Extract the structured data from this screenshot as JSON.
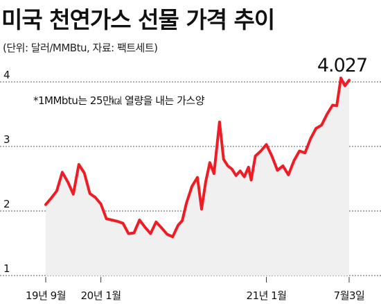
{
  "title": "미국 천연가스 선물 가격 추이",
  "subtitle": "(단위: 달러/MMBtu, 자료: 팩트세트)",
  "colors": {
    "line": "#ee1c25",
    "area": "#f0f0f0",
    "grid": "#555555",
    "text": "#111111"
  },
  "chart_data": {
    "type": "line",
    "title": "미국 천연가스 선물 가격 추이",
    "unit": "달러/MMBtu",
    "source": "팩트세트",
    "note": "*1MMbtu는 25만㎉ 열량을 내는 가스양",
    "ylim": [
      1,
      4
    ],
    "yticks": [
      1,
      2,
      3,
      4
    ],
    "grid": "horizontal-dashed",
    "xlim": [
      0,
      22
    ],
    "xticks": [
      {
        "x": 0,
        "label": "19년 9월"
      },
      {
        "x": 4,
        "label": "20년 1월"
      },
      {
        "x": 16,
        "label": "21년 1월"
      },
      {
        "x": 22,
        "label": "7월3일"
      }
    ],
    "annotation": {
      "x": 22,
      "label": "4.027"
    },
    "series": [
      {
        "values": [
          {
            "x": 0.0,
            "y": 2.1
          },
          {
            "x": 0.4,
            "y": 2.2
          },
          {
            "x": 0.8,
            "y": 2.31
          },
          {
            "x": 1.2,
            "y": 2.6
          },
          {
            "x": 1.6,
            "y": 2.45
          },
          {
            "x": 2.0,
            "y": 2.26
          },
          {
            "x": 2.4,
            "y": 2.72
          },
          {
            "x": 2.8,
            "y": 2.59
          },
          {
            "x": 3.2,
            "y": 2.27
          },
          {
            "x": 3.6,
            "y": 2.21
          },
          {
            "x": 4.0,
            "y": 2.11
          },
          {
            "x": 4.4,
            "y": 1.88
          },
          {
            "x": 4.8,
            "y": 1.86
          },
          {
            "x": 5.2,
            "y": 1.84
          },
          {
            "x": 5.6,
            "y": 1.81
          },
          {
            "x": 6.0,
            "y": 1.65
          },
          {
            "x": 6.4,
            "y": 1.66
          },
          {
            "x": 6.8,
            "y": 1.86
          },
          {
            "x": 7.2,
            "y": 1.75
          },
          {
            "x": 7.6,
            "y": 1.65
          },
          {
            "x": 8.0,
            "y": 1.83
          },
          {
            "x": 8.4,
            "y": 1.74
          },
          {
            "x": 8.8,
            "y": 1.64
          },
          {
            "x": 9.2,
            "y": 1.6
          },
          {
            "x": 9.6,
            "y": 1.78
          },
          {
            "x": 9.9,
            "y": 1.85
          },
          {
            "x": 10.2,
            "y": 2.12
          },
          {
            "x": 10.6,
            "y": 2.38
          },
          {
            "x": 11.0,
            "y": 2.52
          },
          {
            "x": 11.3,
            "y": 2.03
          },
          {
            "x": 11.6,
            "y": 2.45
          },
          {
            "x": 11.9,
            "y": 2.75
          },
          {
            "x": 12.2,
            "y": 2.58
          },
          {
            "x": 12.6,
            "y": 3.38
          },
          {
            "x": 12.9,
            "y": 2.8
          },
          {
            "x": 13.2,
            "y": 2.7
          },
          {
            "x": 13.5,
            "y": 2.65
          },
          {
            "x": 13.8,
            "y": 2.55
          },
          {
            "x": 14.1,
            "y": 2.62
          },
          {
            "x": 14.4,
            "y": 2.53
          },
          {
            "x": 14.7,
            "y": 2.68
          },
          {
            "x": 14.9,
            "y": 2.48
          },
          {
            "x": 15.2,
            "y": 2.85
          },
          {
            "x": 15.6,
            "y": 2.93
          },
          {
            "x": 16.0,
            "y": 3.03
          },
          {
            "x": 16.4,
            "y": 2.85
          },
          {
            "x": 16.8,
            "y": 2.63
          },
          {
            "x": 17.2,
            "y": 2.7
          },
          {
            "x": 17.6,
            "y": 2.56
          },
          {
            "x": 18.0,
            "y": 2.78
          },
          {
            "x": 18.4,
            "y": 2.93
          },
          {
            "x": 18.8,
            "y": 2.9
          },
          {
            "x": 19.2,
            "y": 3.12
          },
          {
            "x": 19.6,
            "y": 3.28
          },
          {
            "x": 20.0,
            "y": 3.33
          },
          {
            "x": 20.4,
            "y": 3.5
          },
          {
            "x": 20.8,
            "y": 3.64
          },
          {
            "x": 21.1,
            "y": 3.63
          },
          {
            "x": 21.4,
            "y": 4.06
          },
          {
            "x": 21.7,
            "y": 3.94
          },
          {
            "x": 22.0,
            "y": 4.027
          }
        ]
      }
    ]
  }
}
